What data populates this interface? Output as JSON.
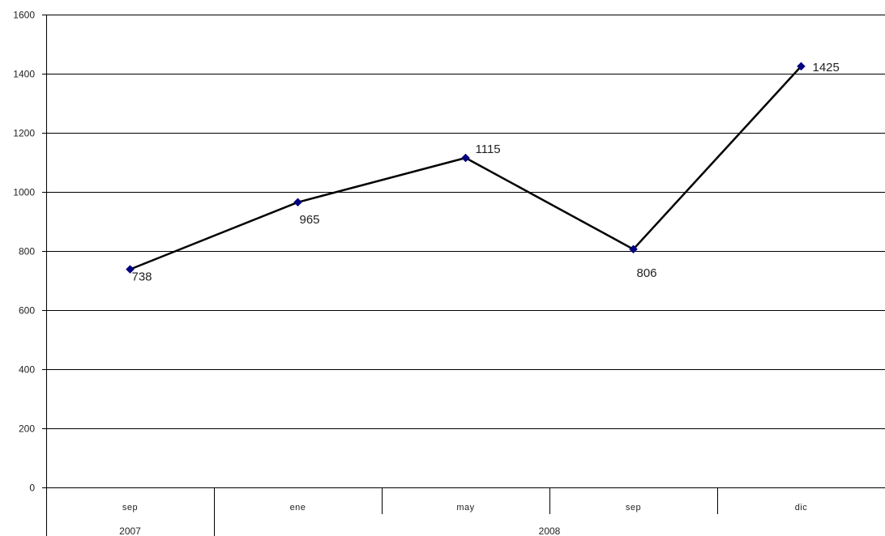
{
  "chart_data": {
    "type": "line",
    "categories": [
      "sep",
      "ene",
      "may",
      "sep",
      "dic"
    ],
    "category_groups": [
      {
        "label": "2007",
        "span": 1
      },
      {
        "label": "2008",
        "span": 4
      }
    ],
    "series": [
      {
        "values": [
          738,
          965,
          1115,
          806,
          1425
        ],
        "color": "#000080"
      }
    ],
    "data_labels": [
      "738",
      "965",
      "1115",
      "806",
      "1425"
    ],
    "y_ticks": [
      "0",
      "200",
      "400",
      "600",
      "800",
      "1000",
      "1200",
      "1400",
      "1600"
    ],
    "ylim": [
      0,
      1600
    ],
    "grid": true,
    "legend": "none",
    "title": "",
    "xlabel": "",
    "ylabel": "",
    "line_color": "#000000",
    "marker_color": "#000080"
  }
}
